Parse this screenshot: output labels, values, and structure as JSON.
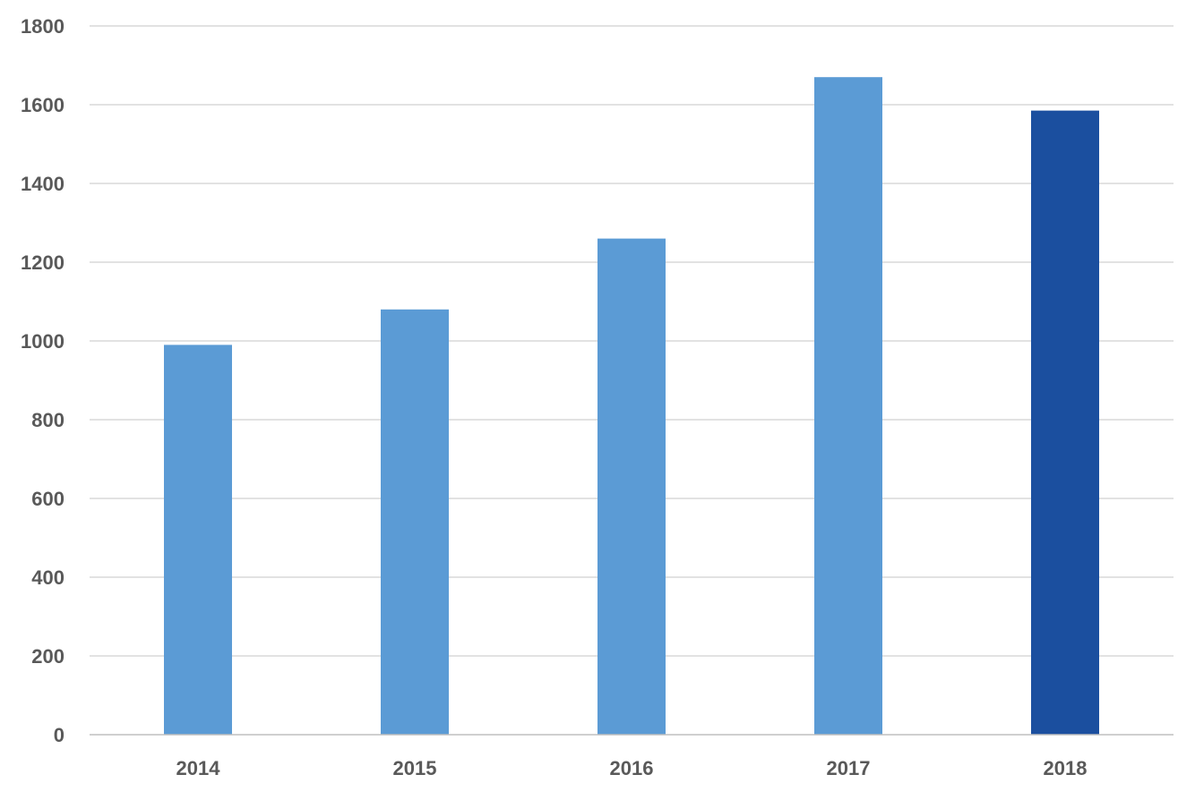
{
  "chart_data": {
    "type": "bar",
    "title": "",
    "xlabel": "",
    "ylabel": "",
    "categories": [
      "2014",
      "2015",
      "2016",
      "2017",
      "2018"
    ],
    "values": [
      990,
      1080,
      1260,
      1670,
      1585
    ],
    "ylim": [
      0,
      1800
    ],
    "yticks": [
      0,
      200,
      400,
      600,
      800,
      1000,
      1200,
      1400,
      1600,
      1800
    ],
    "grid": true,
    "legend": "none",
    "colors": {
      "bar": "#5B9BD5",
      "highlight_bar": "#1B4F9F",
      "gridline": "#D9D9D9",
      "axis_line": "#BFBFBF",
      "tick_label": "#595959"
    },
    "highlight_index": 4
  }
}
